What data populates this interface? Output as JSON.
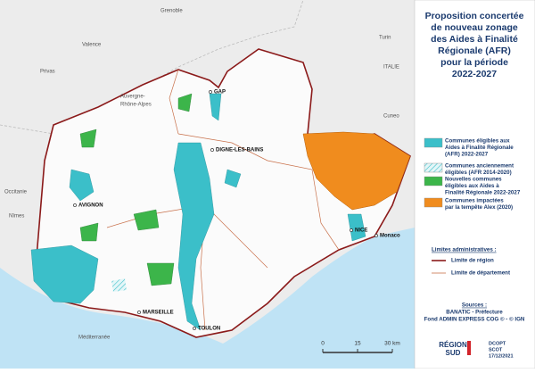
{
  "map": {
    "title_lines": [
      "Proposition concertée",
      "de nouveau zonage",
      "des Aides à Finalité",
      "Régionale (AFR)",
      "pour la période",
      "2022-2027"
    ],
    "legend": [
      {
        "color": "#3bbfc9",
        "lines": [
          "Communes éligibles aux",
          "Aides à Finalité Régionale",
          "(AFR) 2022-2027"
        ]
      },
      {
        "color": "hatch",
        "lines": [
          "Communes anciennement",
          "éligibles (AFR 2014-2020)"
        ]
      },
      {
        "color": "#3cb54a",
        "lines": [
          "Nouvelles communes",
          "éligibles aux Aides à",
          "Finalité Régionale 2022-2027"
        ]
      },
      {
        "color": "#f08c1e",
        "lines": [
          "Communes impactées",
          "par la tempête Alex (2020)"
        ]
      }
    ],
    "limits": {
      "heading": "Limites administratives :",
      "items": [
        {
          "label": "Limite de région",
          "color": "#8b1a1a"
        },
        {
          "label": "Limite de département",
          "color": "#c8704a"
        }
      ]
    },
    "sources": [
      "Sources :",
      "BANATIC - Préfecture",
      "Fond ADMIN EXPRESS COG © - © IGN"
    ],
    "places": [
      "Grenoble",
      "Valence",
      "Privas",
      "Auvergne-",
      "Rhône-Alpes",
      "Occitanie",
      "Nîmes",
      "Turin",
      "ITALIE",
      "Cuneo",
      "Méditerranée"
    ],
    "cities": [
      "GAP",
      "DIGNE-LES-BAINS",
      "AVIGNON",
      "NICE",
      "Monaco",
      "MARSEILLE",
      "TOULON"
    ],
    "scale": [
      "0",
      "15",
      "30 km"
    ],
    "logo": [
      "RÉGION",
      "SUD"
    ],
    "stamp": [
      "DCOPT",
      "SCOT",
      "17/12/2021"
    ]
  }
}
